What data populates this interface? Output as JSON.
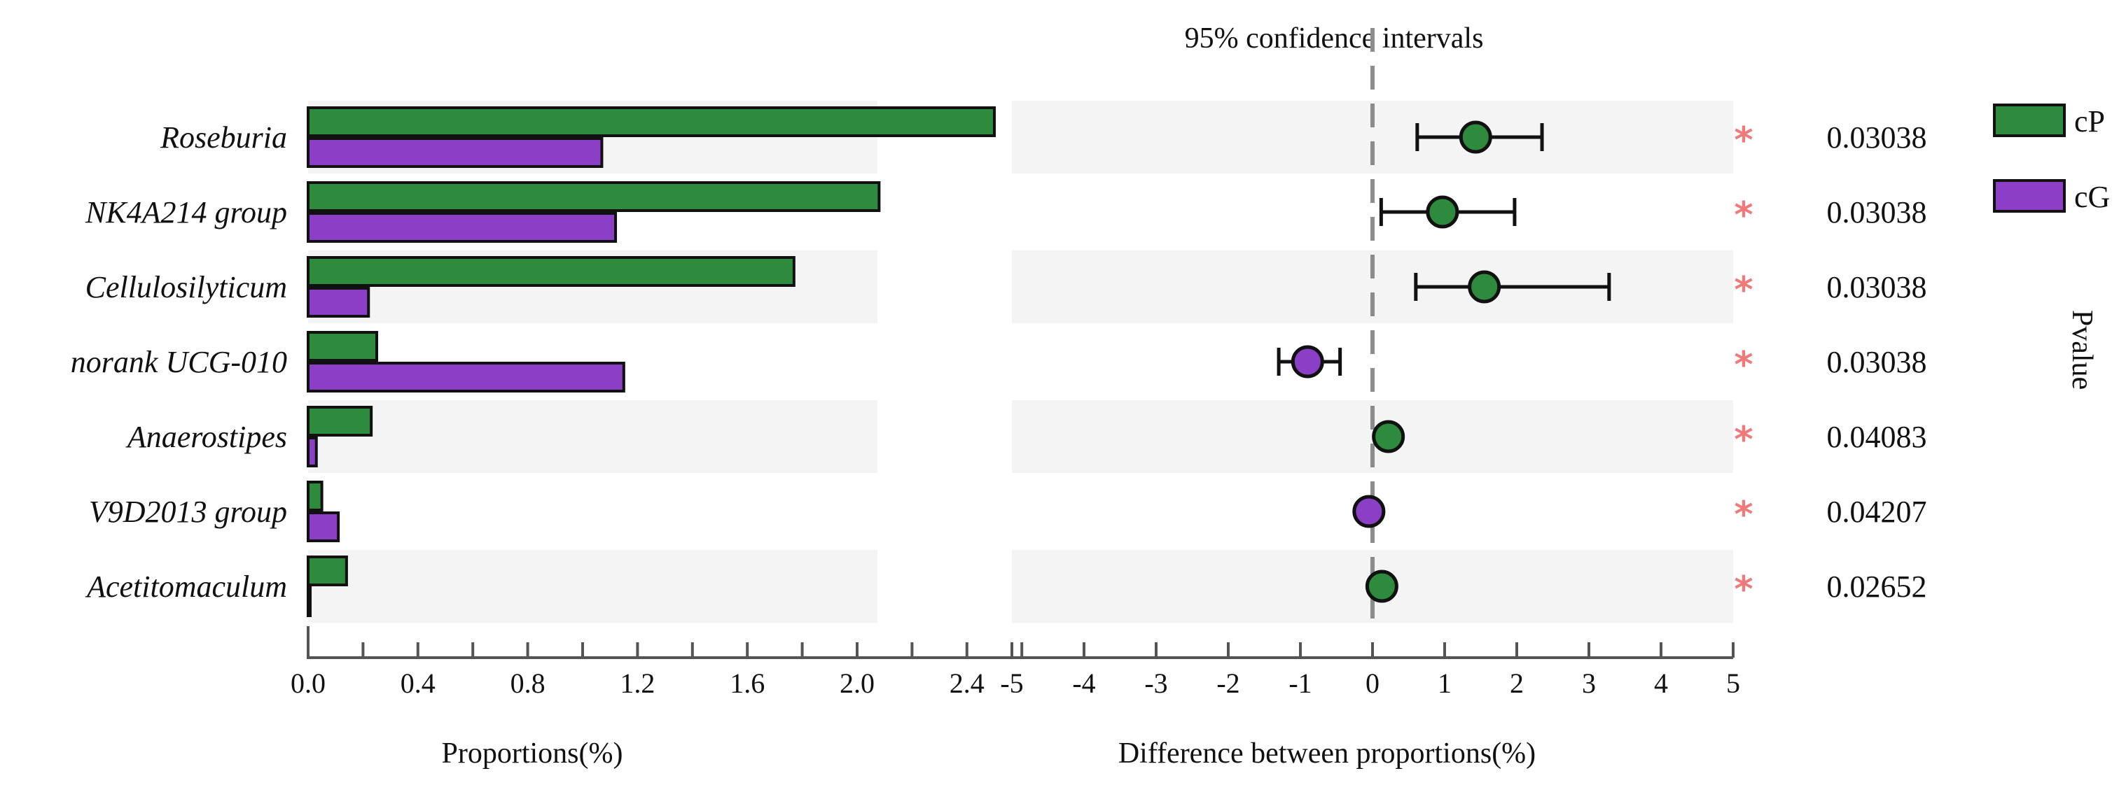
{
  "chart_data": [
    {
      "type": "bar",
      "orientation": "horizontal",
      "categories": [
        "Roseburia",
        "NK4A214 group",
        "Cellulosilyticum",
        "norank UCG-010",
        "Anaerostipes",
        "V9D2013 group",
        "Acetitomaculum"
      ],
      "series": [
        {
          "name": "cP",
          "color": "#2e8b3e",
          "values": [
            2.5,
            2.08,
            1.77,
            0.25,
            0.23,
            0.05,
            0.14
          ]
        },
        {
          "name": "cG",
          "color": "#8a3fc6",
          "values": [
            1.07,
            1.12,
            0.22,
            1.15,
            0.03,
            0.11,
            0.0
          ]
        }
      ],
      "xlabel": "Proportions(%)",
      "xlim": [
        0,
        2.6
      ],
      "xticks": [
        "0.0",
        "0.4",
        "0.8",
        "1.2",
        "1.6",
        "2.0",
        "2.4"
      ]
    },
    {
      "type": "scatter",
      "subtype": "forest-confidence-interval",
      "title": "95% confidence intervals",
      "categories": [
        "Roseburia",
        "NK4A214 group",
        "Cellulosilyticum",
        "norank UCG-010",
        "Anaerostipes",
        "V9D2013 group",
        "Acetitomaculum"
      ],
      "points": [
        {
          "estimate": 1.43,
          "lower": 0.62,
          "upper": 2.35,
          "group": "cP"
        },
        {
          "estimate": 0.97,
          "lower": 0.12,
          "upper": 1.97,
          "group": "cP"
        },
        {
          "estimate": 1.55,
          "lower": 0.6,
          "upper": 3.28,
          "group": "cP"
        },
        {
          "estimate": -0.9,
          "lower": -1.3,
          "upper": -0.45,
          "group": "cG"
        },
        {
          "estimate": 0.22,
          "lower": 0.14,
          "upper": 0.3,
          "group": "cP"
        },
        {
          "estimate": -0.05,
          "lower": -0.1,
          "upper": 0.0,
          "group": "cG"
        },
        {
          "estimate": 0.13,
          "lower": 0.06,
          "upper": 0.2,
          "group": "cP"
        }
      ],
      "xlabel": "Difference between proportions(%)",
      "xlim": [
        -5,
        5
      ],
      "xticks": [
        "-5",
        "-4",
        "-3",
        "-2",
        "-1",
        "0",
        "1",
        "2",
        "3",
        "4",
        "5"
      ],
      "significance_marker": "*",
      "significance_color": "#f07a7a",
      "pvalue_label": "Pvalue",
      "pvalues": [
        "0.03038",
        "0.03038",
        "0.03038",
        "0.03038",
        "0.04083",
        "0.04207",
        "0.02652"
      ]
    }
  ],
  "legend": {
    "position": "top-right",
    "entries": [
      {
        "name": "cP",
        "color": "#2e8b3e"
      },
      {
        "name": "cG",
        "color": "#8a3fc6"
      }
    ]
  }
}
